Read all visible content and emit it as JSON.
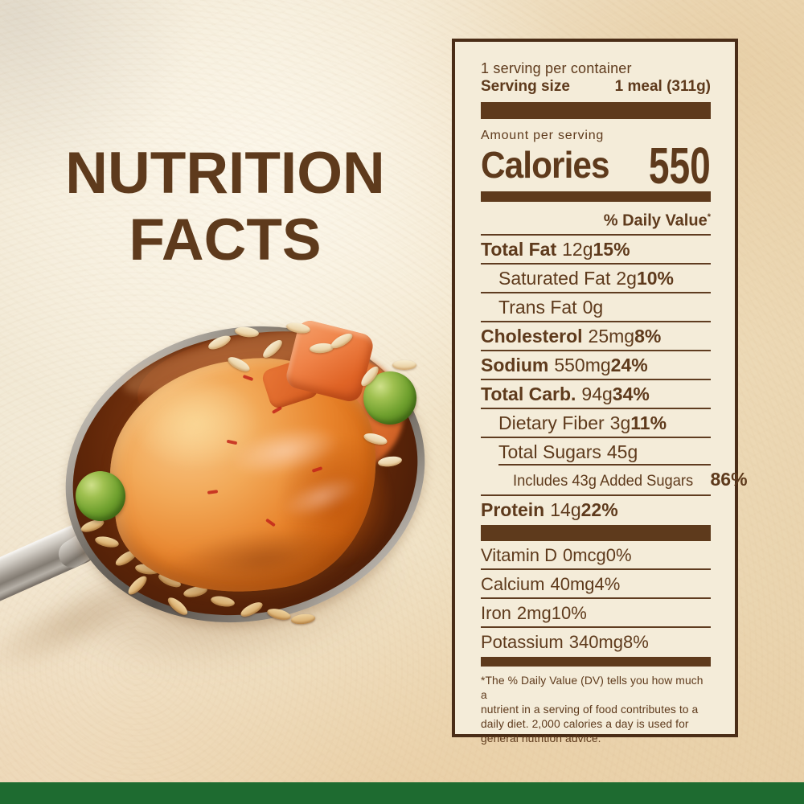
{
  "title": {
    "line1": "NUTRITION",
    "line2": "FACTS"
  },
  "panel": {
    "servings_per_container": "1 serving per container",
    "serving_size_label": "Serving size",
    "serving_size_value": "1 meal (311g)",
    "amount_per_serving": "Amount per serving",
    "calories_label": "Calories",
    "calories_value": "550",
    "daily_value_header": "% Daily Value",
    "daily_value_mark": "*",
    "rows": [
      {
        "name": "Total Fat",
        "amount": "12g",
        "dv": "15%",
        "bold": true,
        "dv_bold": true,
        "indent": 0,
        "rule": "full"
      },
      {
        "name": "Saturated Fat",
        "amount": "2g",
        "dv": "10%",
        "bold": false,
        "dv_bold": true,
        "indent": 1,
        "rule": "full"
      },
      {
        "name": "Trans Fat",
        "amount": "0g",
        "dv": "",
        "bold": false,
        "dv_bold": false,
        "indent": 1,
        "rule": "full"
      },
      {
        "name": "Cholesterol",
        "amount": "25mg",
        "dv": "8%",
        "bold": true,
        "dv_bold": true,
        "indent": 0,
        "rule": "full"
      },
      {
        "name": "Sodium",
        "amount": "550mg",
        "dv": "24%",
        "bold": true,
        "dv_bold": true,
        "indent": 0,
        "rule": "full"
      },
      {
        "name": "Total Carb.",
        "amount": "94g",
        "dv": "34%",
        "bold": true,
        "dv_bold": true,
        "indent": 0,
        "rule": "full"
      },
      {
        "name": "Dietary Fiber",
        "amount": "3g",
        "dv": "11%",
        "bold": false,
        "dv_bold": true,
        "indent": 1,
        "rule": "full"
      },
      {
        "name": "Total Sugars",
        "amount": "45g",
        "dv": "",
        "bold": false,
        "dv_bold": false,
        "indent": 1,
        "rule": "indent"
      },
      {
        "name": "Includes 43g Added Sugars",
        "amount": "",
        "dv": "86%",
        "bold": false,
        "dv_bold": true,
        "indent": 2,
        "rule": "full",
        "condensed": true
      },
      {
        "name": "Protein",
        "amount": "14g",
        "dv": "22%",
        "bold": true,
        "dv_bold": true,
        "indent": 0,
        "rule": "none"
      }
    ],
    "vitamins": [
      {
        "name": "Vitamin D",
        "amount": "0mcg",
        "dv": "0%"
      },
      {
        "name": "Calcium",
        "amount": "40mg",
        "dv": "4%"
      },
      {
        "name": "Iron",
        "amount": "2mg",
        "dv": "10%"
      },
      {
        "name": "Potassium",
        "amount": "340mg",
        "dv": "8%"
      }
    ],
    "footnote": "*The % Daily Value (DV) tells you how much a\nnutrient in a serving of food contributes to a\ndaily diet. 2,000 calories a day is used for\ngeneral nutrition advice."
  },
  "colors": {
    "brown_text": "#5e3a1c",
    "panel_background": "#f4ecd9",
    "panel_border": "#4a2d17",
    "green_bar": "#1e6b30",
    "background_tan": "#eedcba"
  }
}
